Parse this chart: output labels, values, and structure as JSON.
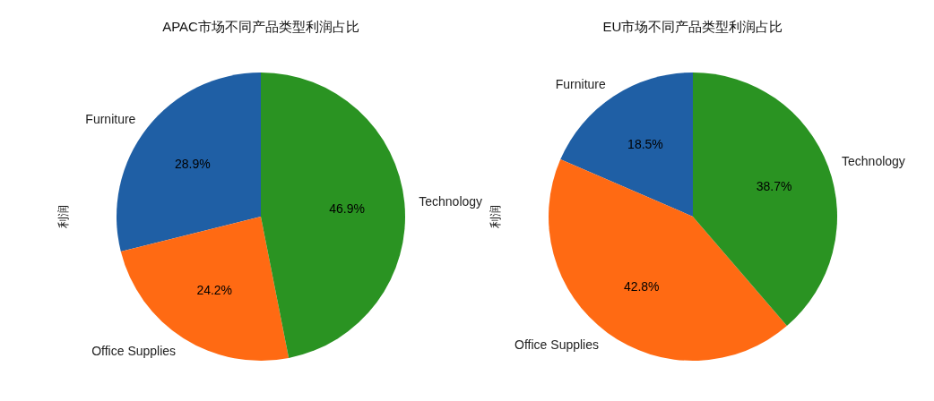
{
  "chart_data": [
    {
      "type": "pie",
      "title": "APAC市场不同产品类型利润占比",
      "ylabel": "利润",
      "categories": [
        "Furniture",
        "Office Supplies",
        "Technology"
      ],
      "values": [
        28.9,
        24.2,
        46.9
      ],
      "value_labels": [
        "28.9%",
        "24.2%",
        "46.9%"
      ],
      "colors": [
        "#1f5fa5",
        "#ff6a13",
        "#2a9322"
      ]
    },
    {
      "type": "pie",
      "title": "EU市场不同产品类型利润占比",
      "ylabel": "利润",
      "categories": [
        "Furniture",
        "Office Supplies",
        "Technology"
      ],
      "values": [
        18.5,
        42.8,
        38.7
      ],
      "value_labels": [
        "18.5%",
        "42.8%",
        "38.7%"
      ],
      "colors": [
        "#1f5fa5",
        "#ff6a13",
        "#2a9322"
      ]
    }
  ]
}
